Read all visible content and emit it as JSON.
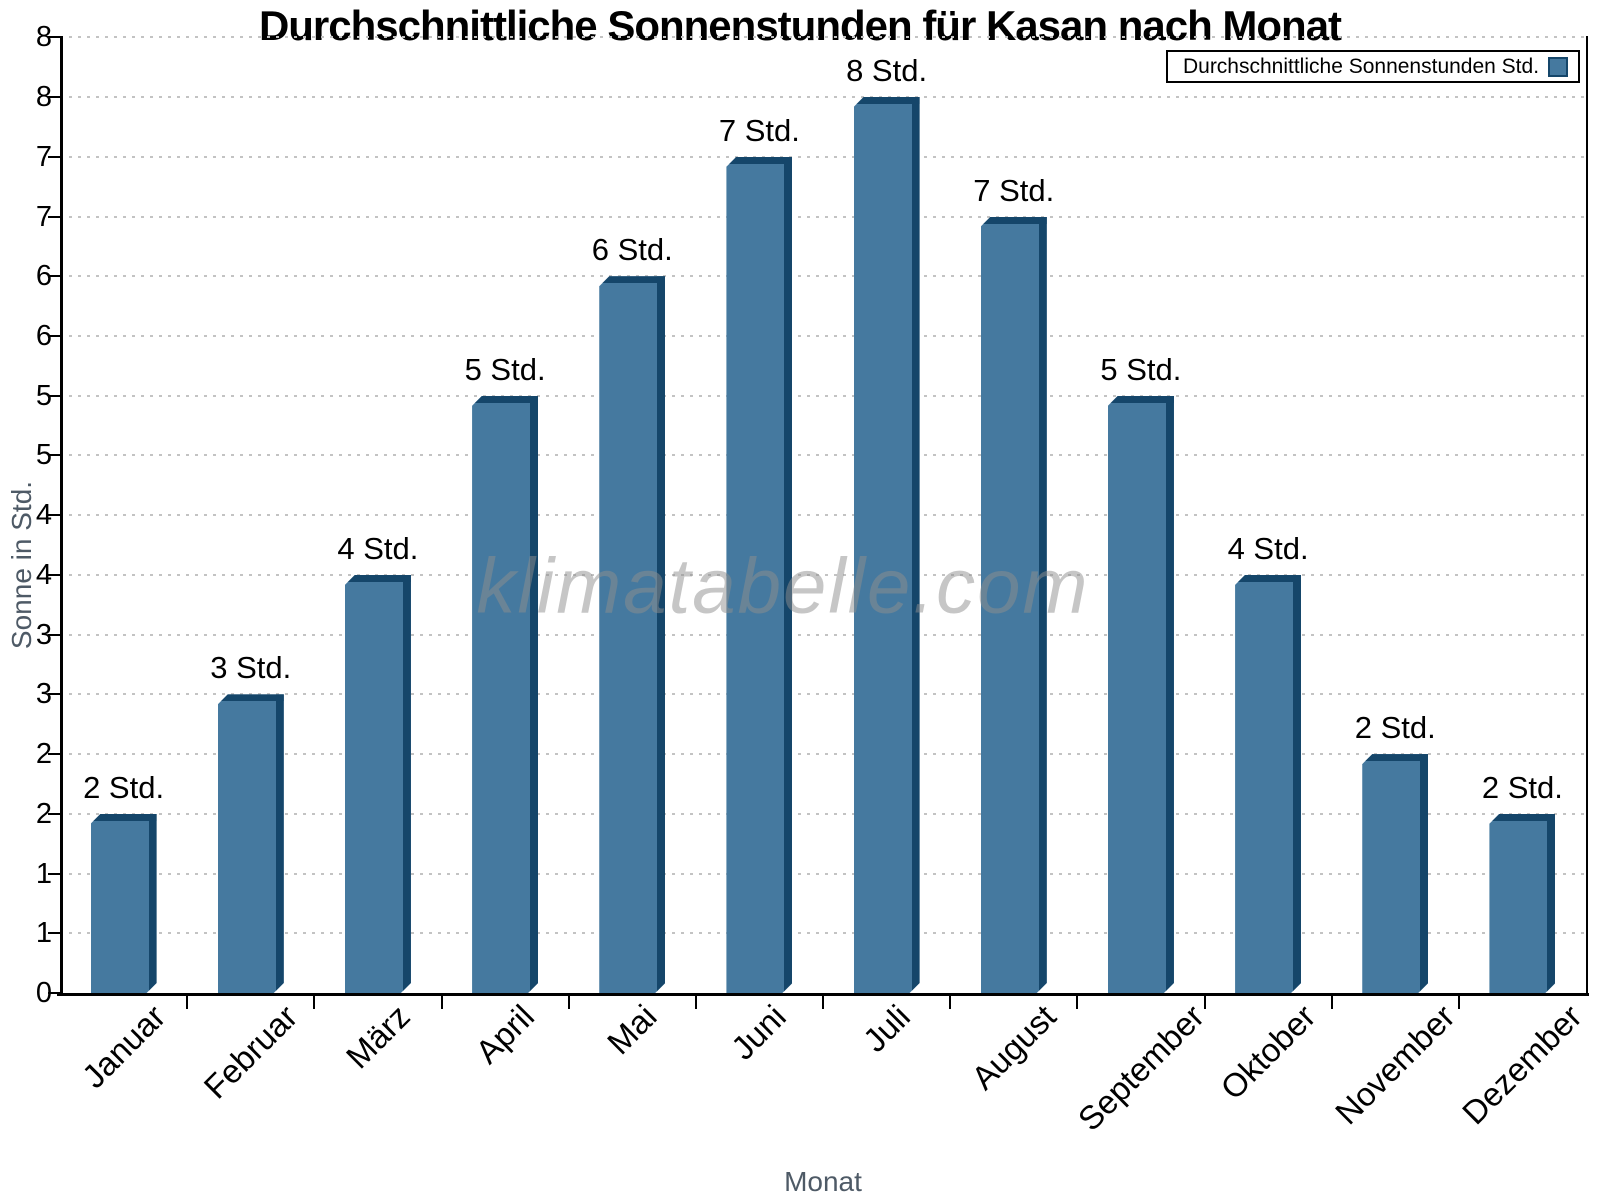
{
  "watermark": "klimatabelle.com",
  "chart_data": {
    "type": "bar",
    "title": "Durchschnittliche Sonnenstunden für Kasan nach Monat",
    "xlabel": "Monat",
    "ylabel": "Sonne in Std.",
    "legend": "Durchschnittliche Sonnenstunden Std.",
    "legend_position": "top-right",
    "categories": [
      "Januar",
      "Februar",
      "März",
      "April",
      "Mai",
      "Juni",
      "Juli",
      "August",
      "September",
      "Oktober",
      "November",
      "Dezember"
    ],
    "values": [
      1.5,
      2.5,
      3.5,
      5.0,
      6.0,
      7.0,
      7.5,
      6.5,
      5.0,
      3.5,
      2.0,
      1.5
    ],
    "bar_labels": [
      "2 Std.",
      "3 Std.",
      "4 Std.",
      "5 Std.",
      "6 Std.",
      "7 Std.",
      "8 Std.",
      "7 Std.",
      "5 Std.",
      "4 Std.",
      "2 Std.",
      "2 Std."
    ],
    "ylim": [
      0,
      8
    ],
    "ytick_step": 0.5,
    "ytick_labels": [
      "0",
      "1",
      "1",
      "2",
      "2",
      "3",
      "3",
      "4",
      "4",
      "5",
      "5",
      "6",
      "6",
      "7",
      "7",
      "8",
      "8"
    ],
    "grid": "horizontal-dotted",
    "colors": {
      "bar_fill": "#45799F",
      "bar_shade": "#15466A",
      "grid": "#C3C3C3",
      "axis": "#000000",
      "axis_title": "#4E5A66",
      "watermark": "#8F8F8F",
      "text": "#000000"
    }
  }
}
